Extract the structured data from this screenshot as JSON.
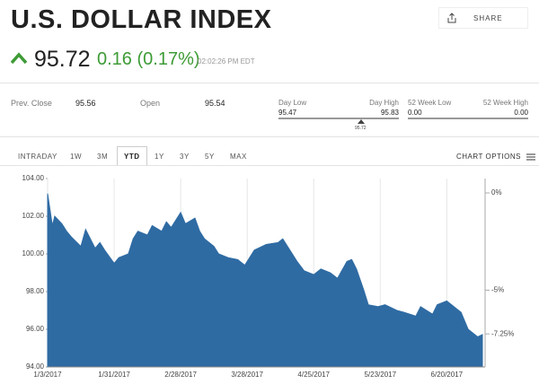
{
  "header": {
    "title": "U.S. DOLLAR INDEX",
    "price": "95.72",
    "change": "0.16 (0.17%)",
    "time": "02:02:26 PM EDT",
    "share": "SHARE"
  },
  "stats": {
    "prev_close": {
      "label": "Prev. Close",
      "value": "95.56"
    },
    "open": {
      "label": "Open",
      "value": "95.54"
    },
    "day_low": {
      "label": "Day Low",
      "value": "95.47"
    },
    "day_high": {
      "label": "Day High",
      "value": "95.83"
    },
    "range_marker": "95.72",
    "week52_low": {
      "label": "52 Week Low",
      "value": "0.00"
    },
    "week52_high": {
      "label": "52 Week High",
      "value": "0.00"
    }
  },
  "tabs": [
    "INTRADAY",
    "1W",
    "3M",
    "YTD",
    "1Y",
    "3Y",
    "5Y",
    "MAX"
  ],
  "chart_options": "CHART OPTIONS",
  "chart_data": {
    "type": "area",
    "color": "#2f6ba3",
    "x": [
      "2017-01-03",
      "2017-01-05",
      "2017-01-06",
      "2017-01-09",
      "2017-01-11",
      "2017-01-13",
      "2017-01-17",
      "2017-01-19",
      "2017-01-23",
      "2017-01-25",
      "2017-01-27",
      "2017-01-31",
      "2017-02-02",
      "2017-02-06",
      "2017-02-08",
      "2017-02-10",
      "2017-02-14",
      "2017-02-16",
      "2017-02-20",
      "2017-02-22",
      "2017-02-24",
      "2017-02-28",
      "2017-03-02",
      "2017-03-06",
      "2017-03-08",
      "2017-03-10",
      "2017-03-14",
      "2017-03-16",
      "2017-03-20",
      "2017-03-24",
      "2017-03-27",
      "2017-03-31",
      "2017-04-05",
      "2017-04-10",
      "2017-04-12",
      "2017-04-14",
      "2017-04-18",
      "2017-04-21",
      "2017-04-25",
      "2017-04-28",
      "2017-05-02",
      "2017-05-05",
      "2017-05-09",
      "2017-05-11",
      "2017-05-13",
      "2017-05-16",
      "2017-05-18",
      "2017-05-22",
      "2017-05-25",
      "2017-05-30",
      "2017-06-02",
      "2017-06-07",
      "2017-06-09",
      "2017-06-14",
      "2017-06-16",
      "2017-06-20",
      "2017-06-22",
      "2017-06-26",
      "2017-06-29",
      "2017-07-03",
      "2017-07-05"
    ],
    "values": [
      103.2,
      101.5,
      102.0,
      101.6,
      101.2,
      100.9,
      100.4,
      101.3,
      100.3,
      100.6,
      100.2,
      99.5,
      99.8,
      100.0,
      100.8,
      101.2,
      101.0,
      101.5,
      101.2,
      101.7,
      101.4,
      102.2,
      101.6,
      101.9,
      101.2,
      100.8,
      100.4,
      100.0,
      99.8,
      99.7,
      99.4,
      100.2,
      100.5,
      100.6,
      100.8,
      100.4,
      99.6,
      99.1,
      98.9,
      99.2,
      99.0,
      98.7,
      99.6,
      99.7,
      99.2,
      98.1,
      97.3,
      97.2,
      97.3,
      97.0,
      96.9,
      96.7,
      97.2,
      96.8,
      97.3,
      97.5,
      97.3,
      96.9,
      96.0,
      95.6,
      95.72
    ],
    "xlim": [
      "2017-01-03",
      "2017-07-05"
    ],
    "xticks": [
      {
        "value": "2017-01-03",
        "label": "1/3/2017"
      },
      {
        "value": "2017-01-31",
        "label": "1/31/2017"
      },
      {
        "value": "2017-02-28",
        "label": "2/28/2017"
      },
      {
        "value": "2017-03-28",
        "label": "3/28/2017"
      },
      {
        "value": "2017-04-25",
        "label": "4/25/2017"
      },
      {
        "value": "2017-05-23",
        "label": "5/23/2017"
      },
      {
        "value": "2017-06-20",
        "label": "6/20/2017"
      }
    ],
    "ylim": [
      94,
      104
    ],
    "yticks": [
      {
        "value": 94,
        "label": "94.00"
      },
      {
        "value": 96,
        "label": "96.00"
      },
      {
        "value": 98,
        "label": "98.00"
      },
      {
        "value": 100,
        "label": "100.00"
      },
      {
        "value": 102,
        "label": "102.00"
      },
      {
        "value": 104,
        "label": "104.00"
      }
    ],
    "y2lim": [
      -8.95,
      0.74
    ],
    "y2ticks": [
      {
        "value": 0,
        "label": "0%"
      },
      {
        "value": -5,
        "label": "-5%"
      },
      {
        "value": -7.25,
        "label": "-7.25%"
      }
    ],
    "grid": true
  }
}
